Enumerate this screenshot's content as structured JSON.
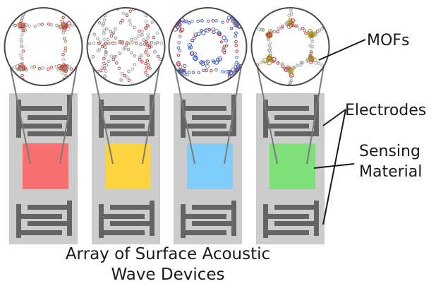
{
  "labels": {
    "mofs": "MOFs",
    "electrodes": "Electrodes",
    "sensing_line1": "Sensing",
    "sensing_line2": "Material"
  },
  "caption": {
    "line1": "Array of Surface Acoustic",
    "line2": "Wave Devices"
  },
  "devices": [
    {
      "name": "device-1",
      "sensing_color": "#fa6f6f",
      "mof_style": "square-grid"
    },
    {
      "name": "device-2",
      "sensing_color": "#fdd33f",
      "mof_style": "interwoven"
    },
    {
      "name": "device-3",
      "sensing_color": "#7fcdfb",
      "mof_style": "blue-framework"
    },
    {
      "name": "device-4",
      "sensing_color": "#7fe07a",
      "mof_style": "hexagonal"
    }
  ],
  "colors": {
    "substrate": "#cccccc",
    "electrode": "#646464",
    "leader_line": "#7a7a7a",
    "annotation_line": "#1a1a1a"
  }
}
